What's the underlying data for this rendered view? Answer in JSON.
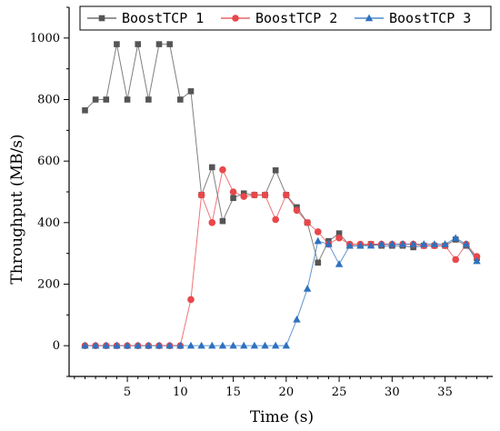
{
  "chart_data": {
    "type": "line",
    "title": "",
    "xlabel": "Time (s)",
    "ylabel": "Throughput (MB/s)",
    "xlim": [
      -0.5,
      39.5
    ],
    "ylim": [
      -100,
      1100
    ],
    "xticks": [
      5,
      10,
      15,
      20,
      25,
      30,
      35
    ],
    "yticks": [
      0,
      200,
      400,
      600,
      800,
      1000
    ],
    "grid": false,
    "legend_position": "top",
    "x": [
      1,
      2,
      3,
      4,
      5,
      6,
      7,
      8,
      9,
      10,
      11,
      12,
      13,
      14,
      15,
      16,
      17,
      18,
      19,
      20,
      21,
      22,
      23,
      24,
      25,
      26,
      27,
      28,
      29,
      30,
      31,
      32,
      33,
      34,
      35,
      36,
      37,
      38
    ],
    "series": [
      {
        "name": "BoostTCP 1",
        "color": "#555555",
        "marker": "square",
        "values": [
          765,
          800,
          800,
          980,
          800,
          980,
          800,
          980,
          980,
          800,
          827,
          490,
          580,
          405,
          480,
          495,
          490,
          490,
          570,
          490,
          450,
          400,
          270,
          340,
          365,
          325,
          325,
          330,
          325,
          325,
          325,
          320,
          325,
          325,
          325,
          345,
          325,
          285
        ]
      },
      {
        "name": "BoostTCP 2",
        "color": "#e8474b",
        "marker": "circle",
        "values": [
          0,
          0,
          0,
          0,
          0,
          0,
          0,
          0,
          0,
          0,
          150,
          490,
          400,
          572,
          500,
          485,
          490,
          490,
          410,
          490,
          440,
          400,
          370,
          330,
          350,
          330,
          330,
          330,
          330,
          330,
          330,
          330,
          325,
          325,
          325,
          280,
          330,
          290
        ]
      },
      {
        "name": "BoostTCP 3",
        "color": "#2d72c0",
        "marker": "triangle",
        "values": [
          0,
          0,
          0,
          0,
          0,
          0,
          0,
          0,
          0,
          0,
          0,
          0,
          0,
          0,
          0,
          0,
          0,
          0,
          0,
          0,
          85,
          185,
          340,
          330,
          265,
          325,
          325,
          325,
          330,
          330,
          330,
          330,
          330,
          330,
          330,
          350,
          330,
          275
        ]
      }
    ]
  }
}
